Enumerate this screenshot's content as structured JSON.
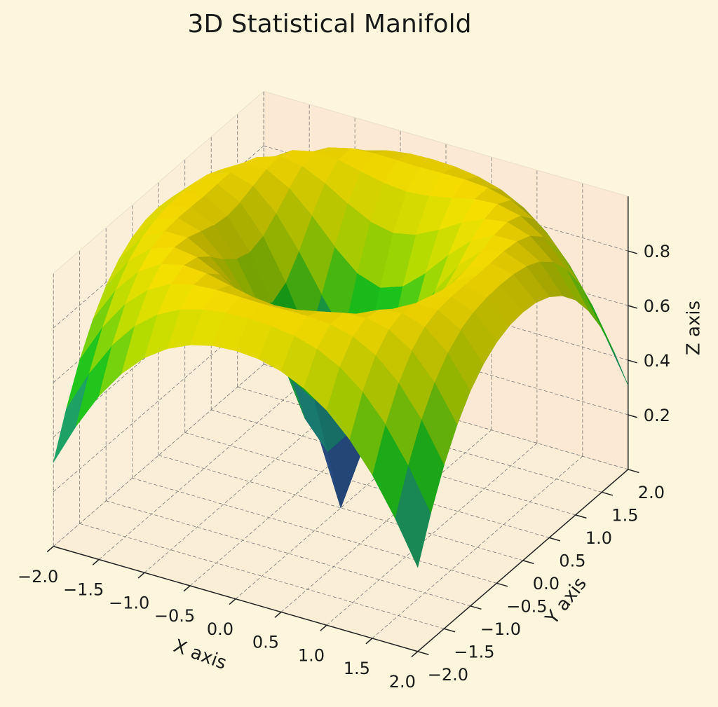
{
  "chart_data": {
    "type": "surface",
    "title": "3D Statistical Manifold",
    "x_label": "X axis",
    "y_label": "Y axis",
    "z_label": "Z axis",
    "x": [
      -2,
      -1.75,
      -1.5,
      -1.25,
      -1,
      -0.75,
      -0.5,
      -0.25,
      0,
      0.25,
      0.5,
      0.75,
      1,
      1.25,
      1.5,
      1.75,
      2
    ],
    "y": [
      -2,
      -1.75,
      -1.5,
      -1.25,
      -1,
      -0.75,
      -0.5,
      -0.25,
      0,
      0.25,
      0.5,
      0.75,
      1,
      1.25,
      1.5,
      1.75,
      2
    ],
    "z": [
      [
        0.308,
        0.465,
        0.599,
        0.705,
        0.787,
        0.844,
        0.882,
        0.903,
        0.909,
        0.903,
        0.882,
        0.844,
        0.787,
        0.705,
        0.599,
        0.465,
        0.308
      ],
      [
        0.465,
        0.618,
        0.742,
        0.837,
        0.903,
        0.945,
        0.969,
        0.981,
        0.984,
        0.981,
        0.969,
        0.945,
        0.903,
        0.837,
        0.742,
        0.618,
        0.465
      ],
      [
        0.599,
        0.742,
        0.852,
        0.928,
        0.973,
        0.994,
        1,
        0.999,
        0.997,
        0.999,
        1,
        0.994,
        0.973,
        0.928,
        0.852,
        0.742,
        0.599
      ],
      [
        0.705,
        0.837,
        0.928,
        0.981,
        1,
        0.994,
        0.975,
        0.957,
        0.949,
        0.957,
        0.975,
        0.994,
        1,
        0.981,
        0.928,
        0.837,
        0.705
      ],
      [
        0.787,
        0.903,
        0.973,
        1,
        0.988,
        0.949,
        0.899,
        0.858,
        0.841,
        0.858,
        0.899,
        0.949,
        0.988,
        1,
        0.973,
        0.903,
        0.787
      ],
      [
        0.844,
        0.945,
        0.994,
        0.994,
        0.949,
        0.873,
        0.784,
        0.711,
        0.682,
        0.711,
        0.784,
        0.873,
        0.949,
        0.994,
        0.994,
        0.945,
        0.844
      ],
      [
        0.882,
        0.969,
        1,
        0.975,
        0.899,
        0.784,
        0.65,
        0.53,
        0.479,
        0.53,
        0.65,
        0.784,
        0.899,
        0.975,
        1,
        0.969,
        0.882
      ],
      [
        0.903,
        0.981,
        0.999,
        0.957,
        0.858,
        0.711,
        0.53,
        0.346,
        0.247,
        0.346,
        0.53,
        0.711,
        0.858,
        0.957,
        0.999,
        0.981,
        0.903
      ],
      [
        0.909,
        0.984,
        0.997,
        0.949,
        0.841,
        0.682,
        0.479,
        0.247,
        0,
        0.247,
        0.479,
        0.682,
        0.841,
        0.949,
        0.997,
        0.984,
        0.909
      ],
      [
        0.903,
        0.981,
        0.999,
        0.957,
        0.858,
        0.711,
        0.53,
        0.346,
        0.247,
        0.346,
        0.53,
        0.711,
        0.858,
        0.957,
        0.999,
        0.981,
        0.903
      ],
      [
        0.882,
        0.969,
        1,
        0.975,
        0.899,
        0.784,
        0.65,
        0.53,
        0.479,
        0.53,
        0.65,
        0.784,
        0.899,
        0.975,
        1,
        0.969,
        0.882
      ],
      [
        0.844,
        0.945,
        0.994,
        0.994,
        0.949,
        0.873,
        0.784,
        0.711,
        0.682,
        0.711,
        0.784,
        0.873,
        0.949,
        0.994,
        0.994,
        0.945,
        0.844
      ],
      [
        0.787,
        0.903,
        0.973,
        1,
        0.988,
        0.949,
        0.899,
        0.858,
        0.841,
        0.858,
        0.899,
        0.949,
        0.988,
        1,
        0.973,
        0.903,
        0.787
      ],
      [
        0.705,
        0.837,
        0.928,
        0.981,
        1,
        0.994,
        0.975,
        0.957,
        0.949,
        0.957,
        0.975,
        0.994,
        1,
        0.981,
        0.928,
        0.837,
        0.705
      ],
      [
        0.599,
        0.742,
        0.852,
        0.928,
        0.973,
        0.994,
        1,
        0.999,
        0.997,
        0.999,
        1,
        0.994,
        0.973,
        0.928,
        0.852,
        0.742,
        0.599
      ],
      [
        0.465,
        0.618,
        0.742,
        0.837,
        0.903,
        0.945,
        0.969,
        0.981,
        0.984,
        0.981,
        0.969,
        0.945,
        0.903,
        0.837,
        0.742,
        0.618,
        0.465
      ],
      [
        0.308,
        0.465,
        0.599,
        0.705,
        0.787,
        0.844,
        0.882,
        0.903,
        0.909,
        0.903,
        0.882,
        0.844,
        0.787,
        0.705,
        0.599,
        0.465,
        0.308
      ]
    ],
    "colormap": [
      "#440a68",
      "#30589a",
      "#1f968b",
      "#1ecb1e",
      "#b5e000",
      "#ffe000"
    ],
    "xlim": [
      -2,
      2
    ],
    "ylim": [
      -2,
      2
    ],
    "zlim": [
      0,
      1
    ],
    "xticks": [
      {
        "value": -2,
        "label": "−2.0"
      },
      {
        "value": -1.5,
        "label": "−1.5"
      },
      {
        "value": -1,
        "label": "−1.0"
      },
      {
        "value": -0.5,
        "label": "−0.5"
      },
      {
        "value": 0,
        "label": "0.0"
      },
      {
        "value": 0.5,
        "label": "0.5"
      },
      {
        "value": 1,
        "label": "1.0"
      },
      {
        "value": 1.5,
        "label": "1.5"
      },
      {
        "value": 2,
        "label": "2.0"
      }
    ],
    "yticks": [
      {
        "value": -2,
        "label": "−2.0"
      },
      {
        "value": -1.5,
        "label": "−1.5"
      },
      {
        "value": -1,
        "label": "−1.0"
      },
      {
        "value": -0.5,
        "label": "−0.5"
      },
      {
        "value": 0,
        "label": "0.0"
      },
      {
        "value": 0.5,
        "label": "0.5"
      },
      {
        "value": 1,
        "label": "1.0"
      },
      {
        "value": 1.5,
        "label": "1.5"
      },
      {
        "value": 2,
        "label": "2.0"
      }
    ],
    "zticks": [
      0.2,
      0.4,
      0.6,
      0.8
    ],
    "grid": true
  }
}
